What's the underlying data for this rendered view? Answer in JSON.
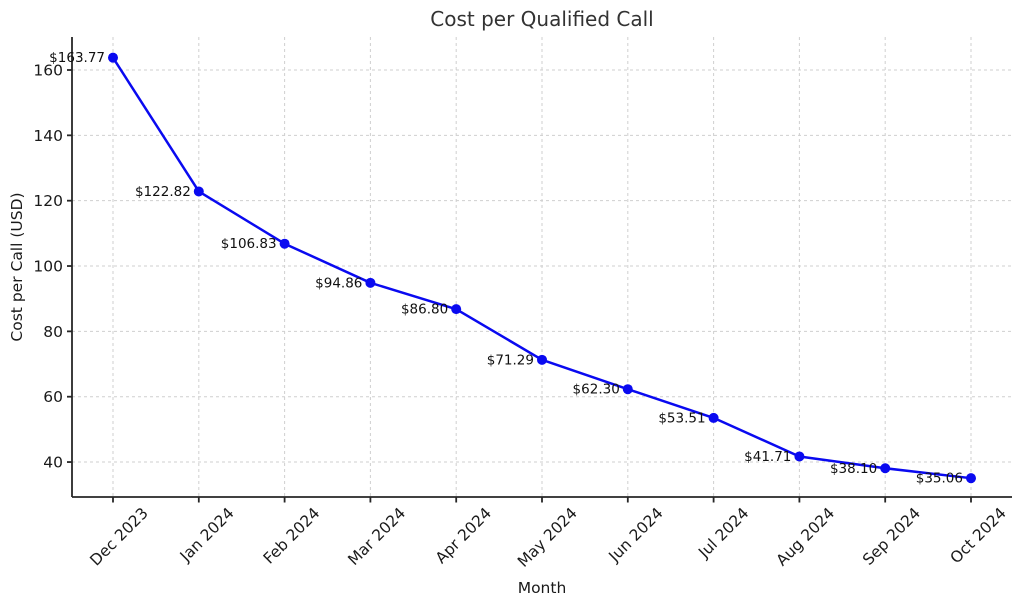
{
  "chart_data": {
    "type": "line",
    "title": "Cost per Qualified Call",
    "xlabel": "Month",
    "ylabel": "Cost per Call (USD)",
    "categories": [
      "Dec 2023",
      "Jan 2024",
      "Feb 2024",
      "Mar 2024",
      "Apr 2024",
      "May 2024",
      "Jun 2024",
      "Jul 2024",
      "Aug 2024",
      "Sep 2024",
      "Oct 2024"
    ],
    "values": [
      163.77,
      122.82,
      106.83,
      94.86,
      86.8,
      71.29,
      62.3,
      53.51,
      41.71,
      38.1,
      35.06
    ],
    "point_labels": [
      "$163.77",
      "$122.82",
      "$106.83",
      "$94.86",
      "$86.80",
      "$71.29",
      "$62.30",
      "$53.51",
      "$41.71",
      "$38.10",
      "$35.06"
    ],
    "yticks": [
      40,
      60,
      80,
      100,
      120,
      140,
      160
    ],
    "ylim": [
      29.3,
      170.1
    ],
    "grid": true,
    "legend": false,
    "x_tick_rotation_deg": -45,
    "colors": {
      "line": "#0a0af0",
      "marker": "#0a0af0",
      "grid": "#cfcfcf",
      "spine": "#262626",
      "tick_text": "#1a1a1a",
      "point_label_text": "#111111",
      "title_text": "#333333",
      "background": "#ffffff"
    }
  }
}
